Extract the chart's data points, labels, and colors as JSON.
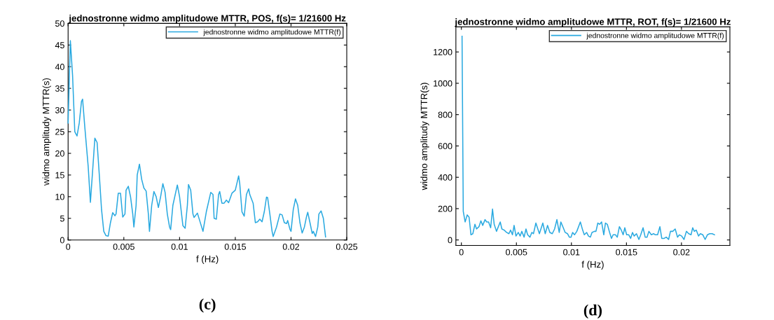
{
  "chart_data": [
    {
      "type": "line",
      "title": "jednostronne widmo amplitudowe MTTR, POS, f(s)= 1/21600 Hz",
      "xlabel": "f (Hz)",
      "ylabel": "widmo amplitudy MTTR(s)",
      "legend": "top right",
      "grid": false,
      "xlim": [
        0,
        0.025
      ],
      "ylim": [
        0,
        50
      ],
      "xticks": [
        0,
        0.005,
        0.01,
        0.015,
        0.02,
        0.025
      ],
      "yticks": [
        0,
        5,
        10,
        15,
        20,
        25,
        30,
        35,
        40,
        45,
        50
      ],
      "annotations": [
        "(c)"
      ],
      "series": [
        {
          "name": "jednostronne widmo amplitudowe MTTR(f)",
          "color": "#29a9e0",
          "x": [
            0,
            0.0002,
            0.0004,
            0.0006,
            0.0008,
            0.001,
            0.0012,
            0.0013,
            0.0015,
            0.0018,
            0.002,
            0.0022,
            0.0024,
            0.0026,
            0.0028,
            0.003,
            0.0032,
            0.0034,
            0.0036,
            0.0038,
            0.004,
            0.0042,
            0.0043,
            0.0045,
            0.0047,
            0.0049,
            0.0051,
            0.0052,
            0.0054,
            0.0056,
            0.0058,
            0.0059,
            0.0061,
            0.0062,
            0.0064,
            0.0066,
            0.0068,
            0.007,
            0.0072,
            0.0073,
            0.0075,
            0.0077,
            0.0079,
            0.0081,
            0.0083,
            0.0085,
            0.0087,
            0.0089,
            0.0091,
            0.0092,
            0.0094,
            0.0098,
            0.01,
            0.0103,
            0.0105,
            0.0107,
            0.0108,
            0.011,
            0.0112,
            0.0113,
            0.0116,
            0.0121,
            0.0124,
            0.0128,
            0.013,
            0.0131,
            0.0133,
            0.0135,
            0.0136,
            0.0138,
            0.014,
            0.0142,
            0.0144,
            0.0147,
            0.015,
            0.0153,
            0.0154,
            0.0156,
            0.0158,
            0.016,
            0.0162,
            0.0163,
            0.0166,
            0.0168,
            0.017,
            0.0172,
            0.0174,
            0.0176,
            0.0178,
            0.0179,
            0.0181,
            0.0183,
            0.0184,
            0.0187,
            0.019,
            0.0192,
            0.0194,
            0.0196,
            0.0197,
            0.0199,
            0.02,
            0.0202,
            0.0204,
            0.0206,
            0.0208,
            0.021,
            0.0212,
            0.0214,
            0.0215,
            0.0217,
            0.0219,
            0.022,
            0.0221,
            0.0222,
            0.0224,
            0.0225,
            0.0227,
            0.0229,
            0.0231
          ],
          "values": [
            27,
            46,
            38,
            25,
            24,
            27,
            32,
            32.5,
            26,
            17,
            8.7,
            16,
            23.5,
            22.5,
            15,
            7,
            2,
            1,
            0.9,
            4,
            6.3,
            5.6,
            6,
            10.8,
            10.8,
            5.3,
            6,
            11.5,
            12.4,
            10,
            6,
            3,
            8,
            15,
            17.5,
            14,
            12,
            11.3,
            6,
            2,
            8,
            11.2,
            10,
            7.5,
            10,
            13,
            11,
            6,
            3,
            2.4,
            8,
            12.7,
            10,
            3.3,
            2.7,
            8,
            12.8,
            11.5,
            6,
            5.2,
            6.2,
            2,
            6.5,
            11,
            10.5,
            5,
            4.8,
            10.5,
            11.2,
            8.5,
            8.5,
            9.2,
            8.6,
            10.8,
            11.5,
            14.8,
            13,
            6.5,
            5.5,
            10.5,
            11.8,
            10.5,
            8.5,
            4,
            4.2,
            4.8,
            4.2,
            6.5,
            9.9,
            9.8,
            6,
            2,
            0.8,
            3,
            6,
            5.8,
            4,
            3.8,
            4.5,
            2.5,
            2,
            7,
            9.5,
            8,
            4,
            1.6,
            3,
            5.5,
            6.4,
            4,
            1.5,
            2,
            1.4,
            0.8,
            3,
            6,
            6.7,
            5,
            0.7
          ]
        }
      ]
    },
    {
      "type": "line",
      "title": "jednostronne widmo amplitudowe MTTR, ROT, f(s)= 1/21600 Hz",
      "xlabel": "f (Hz)",
      "ylabel": "widmo amplitudy MTTR(s)",
      "legend": "top right",
      "grid": false,
      "xlim": [
        -0.0005,
        0.0244
      ],
      "ylim": [
        -35,
        1360
      ],
      "xticks": [
        0,
        0.005,
        0.01,
        0.015,
        0.02
      ],
      "yticks": [
        0,
        200,
        400,
        600,
        800,
        1000,
        1200
      ],
      "annotations": [
        "(d)"
      ],
      "series": [
        {
          "name": "jednostronne widmo amplitudowe MTTR(f)",
          "color": "#29a9e0",
          "x": [
            6e-05,
            0.00017,
            0.00034,
            0.00053,
            0.0007,
            0.00087,
            0.00104,
            0.00123,
            0.00138,
            0.0016,
            0.00177,
            0.00194,
            0.00215,
            0.0023,
            0.00247,
            0.00266,
            0.00283,
            0.00298,
            0.00319,
            0.00353,
            0.00368,
            0.00389,
            0.00411,
            0.00432,
            0.00447,
            0.00464,
            0.00479,
            0.00496,
            0.00517,
            0.00534,
            0.00549,
            0.0057,
            0.00587,
            0.00602,
            0.00623,
            0.0064,
            0.00655,
            0.00677,
            0.00709,
            0.0074,
            0.00762,
            0.00783,
            0.00804,
            0.00826,
            0.00847,
            0.00868,
            0.00889,
            0.00904,
            0.00926,
            0.00943,
            0.00964,
            0.00981,
            0.00996,
            0.01011,
            0.01028,
            0.01049,
            0.01081,
            0.01102,
            0.01117,
            0.01138,
            0.01155,
            0.01172,
            0.01187,
            0.01209,
            0.01223,
            0.0124,
            0.01257,
            0.01274,
            0.01294,
            0.01309,
            0.01326,
            0.01347,
            0.01364,
            0.01379,
            0.014,
            0.01417,
            0.01436,
            0.01453,
            0.0147,
            0.01485,
            0.01502,
            0.01521,
            0.01538,
            0.01555,
            0.0157,
            0.01591,
            0.01613,
            0.0163,
            0.01651,
            0.0167,
            0.01687,
            0.01704,
            0.01726,
            0.01747,
            0.01762,
            0.01783,
            0.01804,
            0.01821,
            0.01843,
            0.01862,
            0.01883,
            0.019,
            0.01921,
            0.01943,
            0.01964,
            0.01981,
            0.02002,
            0.02023,
            0.02045,
            0.02066,
            0.02087,
            0.02102,
            0.02117,
            0.02134,
            0.02155,
            0.02172,
            0.02194,
            0.02215,
            0.02236,
            0.02257,
            0.02279,
            0.023
          ],
          "values": [
            1300,
            182,
            115,
            160,
            145,
            33,
            40,
            100,
            70,
            85,
            122,
            93,
            130,
            115,
            115,
            78,
            197,
            100,
            55,
            115,
            70,
            63,
            48,
            40,
            63,
            33,
            93,
            25,
            48,
            25,
            55,
            18,
            70,
            33,
            18,
            48,
            40,
            108,
            40,
            108,
            40,
            93,
            48,
            40,
            70,
            130,
            48,
            115,
            78,
            48,
            40,
            18,
            18,
            48,
            33,
            55,
            115,
            63,
            33,
            48,
            25,
            18,
            48,
            55,
            55,
            108,
            100,
            115,
            33,
            108,
            100,
            48,
            10,
            33,
            33,
            18,
            85,
            63,
            33,
            78,
            33,
            33,
            10,
            48,
            25,
            40,
            3,
            33,
            78,
            18,
            18,
            55,
            33,
            40,
            33,
            33,
            85,
            10,
            10,
            18,
            3,
            55,
            55,
            70,
            18,
            33,
            25,
            3,
            55,
            40,
            33,
            78,
            55,
            63,
            25,
            40,
            33,
            3,
            33,
            40,
            40,
            33
          ]
        }
      ]
    }
  ]
}
